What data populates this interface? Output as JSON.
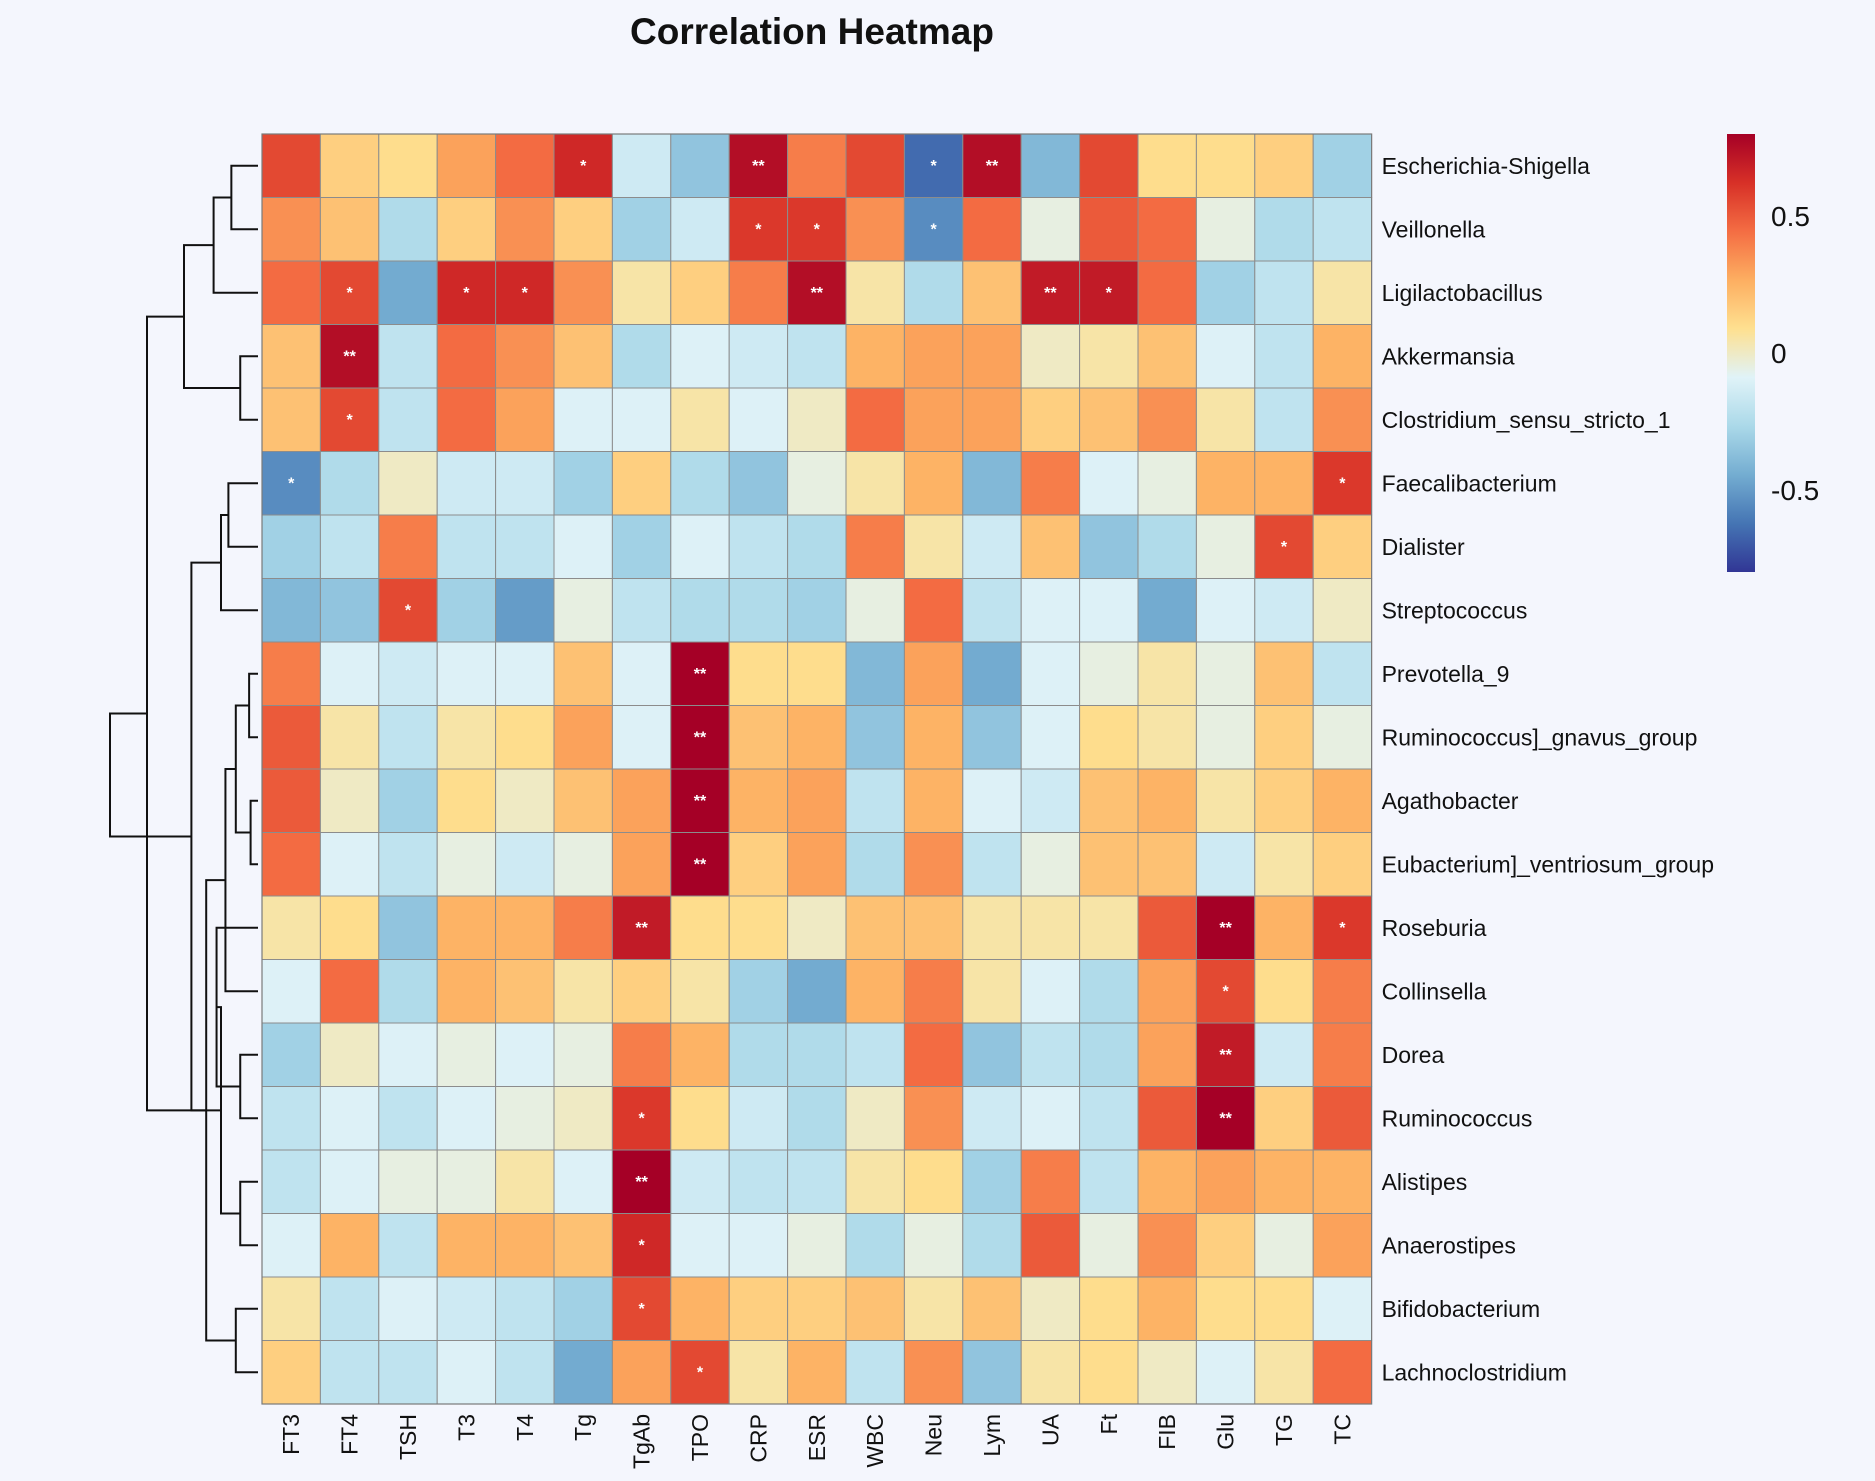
{
  "chart_data": {
    "type": "heatmap",
    "title": "Correlation Heatmap",
    "rows": [
      "Escherichia-Shigella",
      "Veillonella",
      "Ligilactobacillus",
      "Akkermansia",
      "Clostridium_sensu_stricto_1",
      "Faecalibacterium",
      "Dialister",
      "Streptococcus",
      "Prevotella_9",
      "Ruminococcus]_gnavus_group",
      "Agathobacter",
      "Eubacterium]_ventriosum_group",
      "Roseburia",
      "Collinsella",
      "Dorea",
      "Ruminococcus",
      "Alistipes",
      "Anaerostipes",
      "Bifidobacterium",
      "Lachnoclostridium"
    ],
    "columns": [
      "FT3",
      "FT4",
      "TSH",
      "T3",
      "T4",
      "Tg",
      "TgAb",
      "TPO",
      "CRP",
      "ESR",
      "WBC",
      "Neu",
      "Lym",
      "UA",
      "Ft",
      "FIB",
      "Glu",
      "TG",
      "TC"
    ],
    "values": [
      [
        0.55,
        0.15,
        0.1,
        0.3,
        0.45,
        0.65,
        -0.15,
        -0.35,
        0.75,
        0.4,
        0.55,
        -0.65,
        0.75,
        -0.4,
        0.55,
        0.1,
        0.1,
        0.15,
        -0.3
      ],
      [
        0.35,
        0.2,
        -0.25,
        0.15,
        0.35,
        0.15,
        -0.3,
        -0.15,
        0.6,
        0.6,
        0.35,
        -0.55,
        0.45,
        -0.05,
        0.5,
        0.45,
        -0.05,
        -0.25,
        -0.2
      ],
      [
        0.45,
        0.55,
        -0.45,
        0.65,
        0.65,
        0.35,
        0.05,
        0.15,
        0.4,
        0.75,
        0.05,
        -0.25,
        0.2,
        0.7,
        0.7,
        0.45,
        -0.3,
        -0.2,
        0.05
      ],
      [
        0.2,
        0.75,
        -0.2,
        0.45,
        0.35,
        0.2,
        -0.25,
        -0.1,
        -0.15,
        -0.2,
        0.25,
        0.3,
        0.3,
        0.0,
        0.05,
        0.2,
        -0.1,
        -0.2,
        0.25
      ],
      [
        0.2,
        0.55,
        -0.2,
        0.45,
        0.3,
        -0.1,
        -0.1,
        0.05,
        -0.1,
        0.0,
        0.45,
        0.3,
        0.3,
        0.15,
        0.2,
        0.35,
        0.05,
        -0.2,
        0.35
      ],
      [
        -0.55,
        -0.25,
        0.0,
        -0.15,
        -0.15,
        -0.3,
        0.15,
        -0.25,
        -0.35,
        -0.05,
        0.05,
        0.25,
        -0.4,
        0.4,
        -0.1,
        -0.05,
        0.25,
        0.25,
        0.6
      ],
      [
        -0.3,
        -0.2,
        0.4,
        -0.2,
        -0.2,
        -0.1,
        -0.3,
        -0.1,
        -0.2,
        -0.25,
        0.4,
        0.05,
        -0.15,
        0.2,
        -0.35,
        -0.25,
        -0.05,
        0.55,
        0.15
      ],
      [
        -0.4,
        -0.35,
        0.55,
        -0.3,
        -0.5,
        -0.05,
        -0.2,
        -0.25,
        -0.25,
        -0.3,
        -0.05,
        0.45,
        -0.2,
        -0.1,
        -0.1,
        -0.45,
        -0.1,
        -0.15,
        0.0
      ],
      [
        0.4,
        -0.1,
        -0.15,
        -0.1,
        -0.1,
        0.2,
        -0.1,
        0.8,
        0.1,
        0.1,
        -0.4,
        0.3,
        -0.45,
        -0.1,
        -0.05,
        0.05,
        -0.05,
        0.2,
        -0.2
      ],
      [
        0.5,
        0.05,
        -0.2,
        0.05,
        0.1,
        0.3,
        -0.1,
        0.8,
        0.2,
        0.25,
        -0.35,
        0.25,
        -0.35,
        -0.1,
        0.1,
        0.05,
        -0.05,
        0.15,
        -0.05
      ],
      [
        0.5,
        0.0,
        -0.3,
        0.1,
        0.0,
        0.2,
        0.3,
        0.8,
        0.25,
        0.3,
        -0.2,
        0.25,
        -0.1,
        -0.15,
        0.2,
        0.25,
        0.05,
        0.15,
        0.25
      ],
      [
        0.45,
        -0.1,
        -0.2,
        -0.05,
        -0.15,
        -0.05,
        0.3,
        0.8,
        0.15,
        0.3,
        -0.25,
        0.35,
        -0.2,
        -0.05,
        0.2,
        0.2,
        -0.15,
        0.05,
        0.15
      ],
      [
        0.05,
        0.1,
        -0.35,
        0.25,
        0.25,
        0.4,
        0.7,
        0.1,
        0.1,
        0.0,
        0.2,
        0.2,
        0.05,
        0.05,
        0.05,
        0.5,
        0.8,
        0.25,
        0.6
      ],
      [
        -0.1,
        0.45,
        -0.25,
        0.25,
        0.2,
        0.05,
        0.15,
        0.05,
        -0.3,
        -0.45,
        0.25,
        0.4,
        0.05,
        -0.1,
        -0.25,
        0.3,
        0.55,
        0.1,
        0.4
      ],
      [
        -0.3,
        0.0,
        -0.1,
        -0.05,
        -0.1,
        -0.05,
        0.4,
        0.25,
        -0.25,
        -0.25,
        -0.2,
        0.45,
        -0.35,
        -0.2,
        -0.25,
        0.3,
        0.7,
        -0.15,
        0.4
      ],
      [
        -0.2,
        -0.1,
        -0.2,
        -0.1,
        -0.05,
        0.0,
        0.6,
        0.1,
        -0.15,
        -0.25,
        0.0,
        0.35,
        -0.15,
        -0.1,
        -0.2,
        0.5,
        0.8,
        0.15,
        0.5
      ],
      [
        -0.2,
        -0.1,
        -0.05,
        -0.05,
        0.05,
        -0.1,
        0.8,
        -0.15,
        -0.2,
        -0.2,
        0.05,
        0.1,
        -0.3,
        0.4,
        -0.2,
        0.25,
        0.3,
        0.25,
        0.25
      ],
      [
        -0.1,
        0.25,
        -0.2,
        0.25,
        0.25,
        0.2,
        0.65,
        -0.1,
        -0.1,
        -0.05,
        -0.25,
        -0.05,
        -0.25,
        0.5,
        -0.05,
        0.35,
        0.15,
        -0.05,
        0.3
      ],
      [
        0.05,
        -0.2,
        -0.1,
        -0.15,
        -0.2,
        -0.3,
        0.55,
        0.25,
        0.15,
        0.15,
        0.2,
        0.05,
        0.2,
        0.0,
        0.1,
        0.25,
        0.1,
        0.1,
        -0.1
      ],
      [
        0.15,
        -0.2,
        -0.2,
        -0.1,
        -0.2,
        -0.45,
        0.3,
        0.55,
        0.05,
        0.25,
        -0.2,
        0.35,
        -0.35,
        0.05,
        0.1,
        0.0,
        -0.1,
        0.05,
        0.45
      ]
    ],
    "significance": [
      [
        "",
        "",
        "",
        "",
        "",
        "*",
        "",
        "",
        "**",
        "",
        "",
        "*",
        "**",
        "",
        "",
        "",
        "",
        "",
        ""
      ],
      [
        "",
        "",
        "",
        "",
        "",
        "",
        "",
        "",
        "*",
        "*",
        "",
        "*",
        "",
        "",
        "",
        "",
        "",
        "",
        ""
      ],
      [
        "",
        "*",
        "",
        "*",
        "*",
        "",
        "",
        "",
        "",
        "**",
        "",
        "",
        "",
        "**",
        "*",
        "",
        "",
        "",
        ""
      ],
      [
        "",
        "**",
        "",
        "",
        "",
        "",
        "",
        "",
        "",
        "",
        "",
        "",
        "",
        "",
        "",
        "",
        "",
        "",
        ""
      ],
      [
        "",
        "*",
        "",
        "",
        "",
        "",
        "",
        "",
        "",
        "",
        "",
        "",
        "",
        "",
        "",
        "",
        "",
        "",
        ""
      ],
      [
        "*",
        "",
        "",
        "",
        "",
        "",
        "",
        "",
        "",
        "",
        "",
        "",
        "",
        "",
        "",
        "",
        "",
        "",
        "*"
      ],
      [
        "",
        "",
        "",
        "",
        "",
        "",
        "",
        "",
        "",
        "",
        "",
        "",
        "",
        "",
        "",
        "",
        "",
        "*",
        ""
      ],
      [
        "",
        "",
        "*",
        "",
        "",
        "",
        "",
        "",
        "",
        "",
        "",
        "",
        "",
        "",
        "",
        "",
        "",
        "",
        ""
      ],
      [
        "",
        "",
        "",
        "",
        "",
        "",
        "",
        "**",
        "",
        "",
        "",
        "",
        "",
        "",
        "",
        "",
        "",
        "",
        ""
      ],
      [
        "",
        "",
        "",
        "",
        "",
        "",
        "",
        "**",
        "",
        "",
        "",
        "",
        "",
        "",
        "",
        "",
        "",
        "",
        ""
      ],
      [
        "",
        "",
        "",
        "",
        "",
        "",
        "",
        "**",
        "",
        "",
        "",
        "",
        "",
        "",
        "",
        "",
        "",
        "",
        ""
      ],
      [
        "",
        "",
        "",
        "",
        "",
        "",
        "",
        "**",
        "",
        "",
        "",
        "",
        "",
        "",
        "",
        "",
        "",
        "",
        ""
      ],
      [
        "",
        "",
        "",
        "",
        "",
        "",
        "**",
        "",
        "",
        "",
        "",
        "",
        "",
        "",
        "",
        "",
        "**",
        "",
        "*"
      ],
      [
        "",
        "",
        "",
        "",
        "",
        "",
        "",
        "",
        "",
        "",
        "",
        "",
        "",
        "",
        "",
        "",
        "*",
        "",
        ""
      ],
      [
        "",
        "",
        "",
        "",
        "",
        "",
        "",
        "",
        "",
        "",
        "",
        "",
        "",
        "",
        "",
        "",
        "**",
        "",
        ""
      ],
      [
        "",
        "",
        "",
        "",
        "",
        "",
        "*",
        "",
        "",
        "",
        "",
        "",
        "",
        "",
        "",
        "",
        "**",
        "",
        ""
      ],
      [
        "",
        "",
        "",
        "",
        "",
        "",
        "**",
        "",
        "",
        "",
        "",
        "",
        "",
        "",
        "",
        "",
        "",
        "",
        ""
      ],
      [
        "",
        "",
        "",
        "",
        "",
        "",
        "*",
        "",
        "",
        "",
        "",
        "",
        "",
        "",
        "",
        "",
        "",
        "",
        ""
      ],
      [
        "",
        "",
        "",
        "",
        "",
        "",
        "*",
        "",
        "",
        "",
        "",
        "",
        "",
        "",
        "",
        "",
        "",
        "",
        ""
      ],
      [
        "",
        "",
        "",
        "",
        "",
        "",
        "",
        "*",
        "",
        "",
        "",
        "",
        "",
        "",
        "",
        "",
        "",
        "",
        ""
      ]
    ],
    "colorbar": {
      "range": [
        -0.8,
        0.8
      ],
      "ticks": [
        0.5,
        0,
        -0.5
      ],
      "tick_labels": [
        "0.5",
        "0",
        "-0.5"
      ],
      "colors": [
        "#313695",
        "#4575b4",
        "#74add1",
        "#abd9e9",
        "#e0f3f8",
        "#fee090",
        "#fdae61",
        "#f46d43",
        "#d73027",
        "#a50026"
      ],
      "placement": "right"
    },
    "dendrogram": {
      "placement": "left",
      "merges": [
        [
          0,
          1,
          0.18
        ],
        [
          3,
          4,
          0.12
        ],
        [
          2,
          20,
          0.3
        ],
        [
          21,
          22,
          0.5
        ],
        [
          5,
          6,
          0.2
        ],
        [
          24,
          7,
          0.25
        ],
        [
          8,
          9,
          0.06
        ],
        [
          10,
          11,
          0.05
        ],
        [
          26,
          27,
          0.15
        ],
        [
          14,
          15,
          0.12
        ],
        [
          13,
          28,
          0.22
        ],
        [
          12,
          29,
          0.28
        ],
        [
          16,
          17,
          0.12
        ],
        [
          18,
          19,
          0.15
        ],
        [
          31,
          32,
          0.25
        ],
        [
          30,
          33,
          0.35
        ],
        [
          25,
          34,
          0.45
        ],
        [
          23,
          35,
          0.75
        ],
        [
          36,
          37,
          1.0
        ]
      ]
    },
    "grid": true
  }
}
